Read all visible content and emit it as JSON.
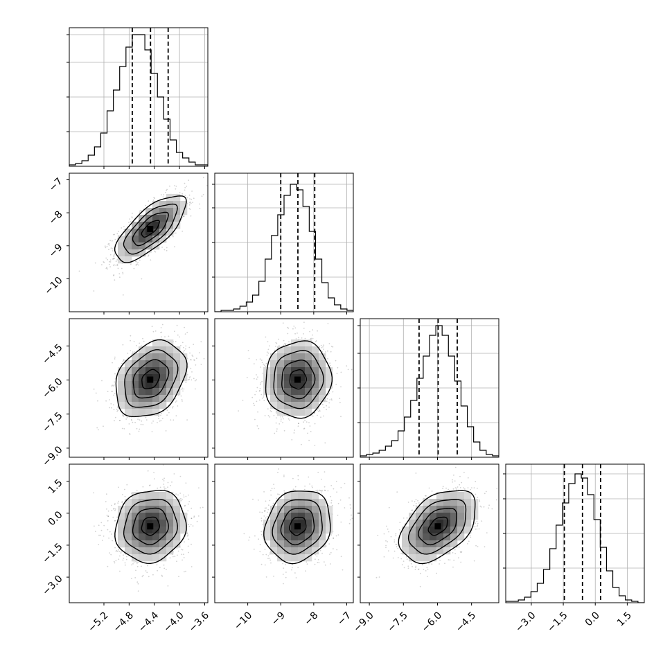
{
  "chart_data": {
    "type": "corner",
    "parameters": [
      {
        "range": [
          -5.75,
          -3.55
        ],
        "ticks": [
          -5.2,
          -4.8,
          -4.4,
          -4.0,
          -3.6
        ],
        "tick_labels": [
          "−5.2",
          "−4.8",
          "−4.4",
          "−4.0",
          "−3.6"
        ],
        "quantiles": [
          -4.75,
          -4.46,
          -4.18
        ],
        "hist_edges_range": [
          -5.75,
          -3.55
        ],
        "hist_counts": [
          1,
          2,
          4,
          8,
          14,
          24,
          40,
          55,
          72,
          86,
          95,
          95,
          84,
          67,
          50,
          34,
          19,
          10,
          6,
          3,
          1,
          1
        ],
        "hist_ylim": [
          0,
          100
        ],
        "hist_grid_y": [
          25,
          50,
          75,
          95
        ]
      },
      {
        "range": [
          -11.0,
          -6.8
        ],
        "ticks": [
          -10,
          -9,
          -8,
          -7
        ],
        "tick_labels": [
          "−10",
          "−9",
          "−8",
          "−7"
        ],
        "quantiles": [
          -9.0,
          -8.48,
          -7.97
        ],
        "hist_edges_range": [
          -11.0,
          -6.8
        ],
        "hist_counts": [
          0,
          1,
          1,
          2,
          4,
          7,
          12,
          22,
          38,
          55,
          70,
          84,
          92,
          88,
          76,
          58,
          38,
          21,
          10,
          5,
          2,
          1
        ],
        "hist_ylim": [
          0,
          100
        ],
        "hist_grid_y": [
          25,
          50,
          75,
          92
        ]
      },
      {
        "range": [
          -9.4,
          -3.3
        ],
        "ticks": [
          -9.0,
          -7.5,
          -6.0,
          -4.5
        ],
        "tick_labels": [
          "−9.0",
          "−7.5",
          "−6.0",
          "−4.5"
        ],
        "quantiles": [
          -6.81,
          -5.97,
          -5.13
        ],
        "hist_edges_range": [
          -9.4,
          -3.3
        ],
        "hist_counts": [
          1,
          2,
          3,
          5,
          8,
          12,
          19,
          29,
          41,
          57,
          73,
          88,
          95,
          88,
          73,
          55,
          37,
          22,
          11,
          5,
          2,
          1
        ],
        "hist_ylim": [
          0,
          100
        ],
        "hist_grid_y": [
          25,
          50,
          75,
          95
        ]
      },
      {
        "range": [
          -4.2,
          2.3
        ],
        "ticks": [
          -3.0,
          -1.5,
          0.0,
          1.5
        ],
        "tick_labels": [
          "−3.0",
          "−1.5",
          "0.0",
          "1.5"
        ],
        "quantiles": [
          -1.45,
          -0.6,
          0.25
        ],
        "hist_edges_range": [
          -4.2,
          2.3
        ],
        "hist_counts": [
          1,
          1,
          2,
          4,
          8,
          14,
          24,
          39,
          56,
          72,
          86,
          93,
          90,
          78,
          60,
          40,
          23,
          11,
          5,
          2,
          1,
          0
        ],
        "hist_ylim": [
          0,
          100
        ],
        "hist_grid_y": [
          25,
          50,
          75,
          93
        ]
      }
    ],
    "pairs": [
      {
        "x_param": 0,
        "y_param": 1,
        "mean": [
          -4.46,
          -8.48
        ],
        "sd": [
          0.28,
          0.5
        ],
        "corr": 0.72
      },
      {
        "x_param": 0,
        "y_param": 2,
        "mean": [
          -4.46,
          -5.97
        ],
        "sd": [
          0.28,
          0.84
        ],
        "corr": 0.3
      },
      {
        "x_param": 1,
        "y_param": 2,
        "mean": [
          -8.48,
          -5.97
        ],
        "sd": [
          0.5,
          0.84
        ],
        "corr": 0.05
      },
      {
        "x_param": 0,
        "y_param": 3,
        "mean": [
          -4.46,
          -0.6
        ],
        "sd": [
          0.28,
          0.85
        ],
        "corr": 0.1
      },
      {
        "x_param": 1,
        "y_param": 3,
        "mean": [
          -8.48,
          -0.6
        ],
        "sd": [
          0.5,
          0.85
        ],
        "corr": 0.15
      },
      {
        "x_param": 2,
        "y_param": 3,
        "mean": [
          -5.97,
          -0.6
        ],
        "sd": [
          0.84,
          0.85
        ],
        "corr": 0.45
      }
    ],
    "contour_levels_sigma": [
      0.5,
      1.0,
      1.5,
      2.0
    ],
    "grid": true,
    "colors": {
      "line": "#000000",
      "grid": "#b0b0b0",
      "scatter": "#000000",
      "background": "#ffffff"
    }
  }
}
